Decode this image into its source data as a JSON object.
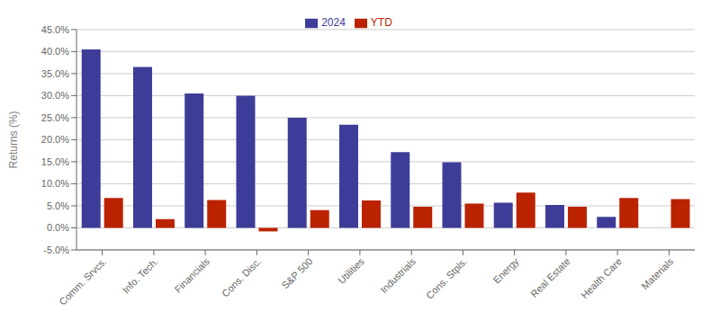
{
  "chart_data": {
    "type": "bar",
    "categories": [
      "Comm. Srvcs.",
      "Info. Tech.",
      "Financials",
      "Cons. Disc.",
      "S&P 500",
      "Utilities",
      "Industrials",
      "Cons. Stpls.",
      "Energy",
      "Real Estate",
      "Health Care",
      "Materials"
    ],
    "series": [
      {
        "name": "2024",
        "color": "#3d3d99",
        "values": [
          40.5,
          36.5,
          30.5,
          30.0,
          25.0,
          23.4,
          17.2,
          14.9,
          5.7,
          5.2,
          2.5,
          0.0
        ]
      },
      {
        "name": "YTD",
        "color": "#bb2200",
        "values": [
          6.8,
          2.0,
          6.3,
          -0.8,
          4.0,
          6.2,
          4.8,
          5.5,
          8.0,
          4.8,
          6.8,
          6.5
        ]
      }
    ],
    "ylabel": "Returns (%)",
    "ylim": [
      -5.0,
      45.0
    ],
    "yticks": [
      {
        "value": -5.0,
        "label": "-5.0%"
      },
      {
        "value": 0.0,
        "label": "0.0%"
      },
      {
        "value": 5.0,
        "label": "5.0%"
      },
      {
        "value": 10.0,
        "label": "10.0%"
      },
      {
        "value": 15.0,
        "label": "15.0%"
      },
      {
        "value": 20.0,
        "label": "20.0%"
      },
      {
        "value": 25.0,
        "label": "25.0%"
      },
      {
        "value": 30.0,
        "label": "30.0%"
      },
      {
        "value": 35.0,
        "label": "35.0%"
      },
      {
        "value": 40.0,
        "label": "40.0%"
      },
      {
        "value": 45.0,
        "label": "45.0%"
      }
    ],
    "grid": true,
    "legend": "top"
  }
}
